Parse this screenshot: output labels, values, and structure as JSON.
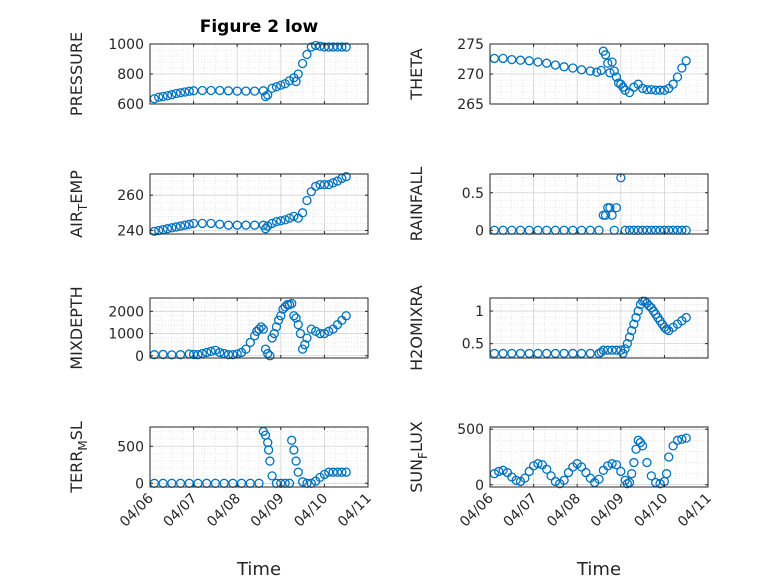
{
  "figure": {
    "marker_color": "#0072BD",
    "axis_color": "#262626",
    "grid_color": "#dfdfdf",
    "x_tick_labels": [
      "04/06",
      "04/07",
      "04/08",
      "04/09",
      "04/10",
      "04/11"
    ],
    "xlabel": "Time"
  },
  "chart_data": [
    {
      "type": "scatter",
      "title": "Figure 2 low",
      "ylabel": "PRESSURE",
      "ylim": [
        600,
        1000
      ],
      "yticks": [
        600,
        800,
        1000
      ],
      "xlim": [
        0,
        5
      ],
      "grid": true,
      "x": [
        0.1,
        0.2,
        0.3,
        0.4,
        0.5,
        0.6,
        0.7,
        0.8,
        0.9,
        1.0,
        1.2,
        1.4,
        1.6,
        1.8,
        2.0,
        2.2,
        2.4,
        2.6,
        2.65,
        2.7,
        2.8,
        2.9,
        3.0,
        3.1,
        3.2,
        3.3,
        3.35,
        3.4,
        3.5,
        3.6,
        3.7,
        3.8,
        3.9,
        4.0,
        4.1,
        4.2,
        4.3,
        4.4,
        4.5
      ],
      "y": [
        635,
        645,
        650,
        655,
        662,
        670,
        675,
        680,
        685,
        688,
        690,
        690,
        690,
        688,
        686,
        686,
        686,
        688,
        650,
        660,
        705,
        715,
        725,
        735,
        755,
        775,
        750,
        800,
        870,
        930,
        980,
        990,
        985,
        980,
        980,
        980,
        980,
        980,
        980
      ]
    },
    {
      "type": "scatter",
      "ylabel": "THETA",
      "ylim": [
        265,
        275
      ],
      "yticks": [
        265,
        270,
        275
      ],
      "xlim": [
        0,
        5
      ],
      "grid": true,
      "x": [
        0.1,
        0.3,
        0.5,
        0.7,
        0.9,
        1.1,
        1.3,
        1.5,
        1.7,
        1.9,
        2.1,
        2.3,
        2.45,
        2.55,
        2.6,
        2.65,
        2.7,
        2.75,
        2.8,
        2.85,
        2.9,
        2.95,
        3.0,
        3.05,
        3.1,
        3.2,
        3.3,
        3.4,
        3.5,
        3.6,
        3.7,
        3.8,
        3.9,
        4.0,
        4.1,
        4.2,
        4.3,
        4.4,
        4.5
      ],
      "y": [
        272.6,
        272.6,
        272.4,
        272.3,
        272.2,
        272.0,
        271.8,
        271.5,
        271.2,
        271.0,
        270.7,
        270.5,
        270.3,
        270.6,
        273.8,
        273.2,
        271.8,
        270.2,
        272.0,
        270.5,
        269.5,
        268.5,
        268.3,
        267.8,
        267.3,
        266.9,
        267.8,
        268.3,
        267.6,
        267.4,
        267.4,
        267.3,
        267.3,
        267.3,
        267.6,
        268.3,
        269.5,
        271.0,
        272.2
      ]
    },
    {
      "type": "scatter",
      "ylabel": "AIR_TEMP",
      "ylim": [
        238,
        272
      ],
      "yticks": [
        240,
        260
      ],
      "xlim": [
        0,
        5
      ],
      "grid": true,
      "x": [
        0.1,
        0.2,
        0.3,
        0.4,
        0.5,
        0.6,
        0.7,
        0.8,
        0.9,
        1.0,
        1.2,
        1.4,
        1.6,
        1.8,
        2.0,
        2.2,
        2.4,
        2.6,
        2.65,
        2.7,
        2.8,
        2.9,
        3.0,
        3.1,
        3.2,
        3.3,
        3.4,
        3.5,
        3.6,
        3.7,
        3.8,
        3.9,
        4.0,
        4.1,
        4.2,
        4.3,
        4.4,
        4.5
      ],
      "y": [
        239.5,
        240.0,
        240.5,
        241.0,
        241.5,
        242.0,
        242.5,
        243.0,
        243.5,
        244.0,
        244.0,
        244.0,
        243.5,
        243.0,
        243.0,
        243.0,
        243.0,
        243.0,
        241.0,
        242.5,
        244.0,
        245.0,
        245.5,
        246.0,
        247.0,
        248.0,
        247.0,
        250.0,
        257.0,
        262.0,
        265.0,
        266.0,
        266.0,
        266.0,
        267.0,
        268.0,
        269.5,
        270.5
      ]
    },
    {
      "type": "scatter",
      "ylabel": "RAINFALL",
      "ylim": [
        -0.05,
        0.75
      ],
      "yticks": [
        0,
        0.5
      ],
      "xlim": [
        0,
        5
      ],
      "grid": true,
      "x": [
        0.1,
        0.3,
        0.5,
        0.7,
        0.9,
        1.1,
        1.3,
        1.5,
        1.7,
        1.9,
        2.1,
        2.3,
        2.5,
        2.6,
        2.65,
        2.7,
        2.75,
        2.8,
        2.85,
        2.9,
        3.0,
        3.1,
        3.2,
        3.3,
        3.4,
        3.5,
        3.6,
        3.7,
        3.8,
        3.9,
        4.0,
        4.1,
        4.2,
        4.3,
        4.4,
        4.5
      ],
      "y": [
        0,
        0,
        0,
        0,
        0,
        0,
        0,
        0,
        0,
        0,
        0,
        0,
        0,
        0.2,
        0.2,
        0.3,
        0.3,
        0.2,
        0,
        0.3,
        0.7,
        0,
        0,
        0,
        0,
        0,
        0,
        0,
        0,
        0,
        0,
        0,
        0,
        0,
        0,
        0
      ]
    },
    {
      "type": "scatter",
      "ylabel": "MIXDEPTH",
      "ylim": [
        -100,
        2600
      ],
      "yticks": [
        0,
        1000,
        2000
      ],
      "xlim": [
        0,
        5
      ],
      "grid": true,
      "x": [
        0.1,
        0.3,
        0.5,
        0.7,
        0.9,
        1.0,
        1.1,
        1.2,
        1.3,
        1.4,
        1.5,
        1.6,
        1.7,
        1.8,
        1.9,
        2.0,
        2.1,
        2.2,
        2.3,
        2.4,
        2.45,
        2.5,
        2.55,
        2.6,
        2.65,
        2.7,
        2.75,
        2.8,
        2.85,
        2.9,
        2.95,
        3.0,
        3.05,
        3.1,
        3.15,
        3.2,
        3.25,
        3.3,
        3.35,
        3.4,
        3.45,
        3.5,
        3.55,
        3.6,
        3.7,
        3.8,
        3.9,
        4.0,
        4.1,
        4.2,
        4.3,
        4.4,
        4.5
      ],
      "y": [
        50,
        60,
        40,
        50,
        80,
        60,
        50,
        100,
        150,
        200,
        250,
        150,
        100,
        50,
        50,
        80,
        150,
        300,
        600,
        900,
        1100,
        1200,
        1300,
        1200,
        300,
        100,
        0,
        800,
        1000,
        1300,
        1600,
        1800,
        2100,
        2200,
        2300,
        2300,
        2350,
        1800,
        1700,
        1400,
        1000,
        300,
        500,
        800,
        1200,
        1100,
        1000,
        1000,
        1100,
        1200,
        1400,
        1600,
        1800
      ]
    },
    {
      "type": "scatter",
      "ylabel": "H2OMIXRA",
      "ylim": [
        0.28,
        1.2
      ],
      "yticks": [
        0.5,
        1
      ],
      "xlim": [
        0,
        5
      ],
      "grid": true,
      "x": [
        0.1,
        0.3,
        0.5,
        0.7,
        0.9,
        1.1,
        1.3,
        1.5,
        1.7,
        1.9,
        2.1,
        2.3,
        2.5,
        2.55,
        2.6,
        2.7,
        2.8,
        2.9,
        3.0,
        3.05,
        3.1,
        3.15,
        3.2,
        3.25,
        3.3,
        3.35,
        3.4,
        3.45,
        3.5,
        3.55,
        3.6,
        3.65,
        3.7,
        3.75,
        3.8,
        3.85,
        3.9,
        3.95,
        4.0,
        4.05,
        4.1,
        4.2,
        4.3,
        4.4,
        4.5
      ],
      "y": [
        0.35,
        0.35,
        0.35,
        0.35,
        0.35,
        0.35,
        0.35,
        0.35,
        0.35,
        0.35,
        0.35,
        0.35,
        0.35,
        0.37,
        0.4,
        0.4,
        0.4,
        0.4,
        0.4,
        0.35,
        0.42,
        0.5,
        0.6,
        0.7,
        0.8,
        0.9,
        1.0,
        1.1,
        1.15,
        1.15,
        1.12,
        1.08,
        1.05,
        1.0,
        0.95,
        0.9,
        0.85,
        0.8,
        0.75,
        0.72,
        0.7,
        0.75,
        0.8,
        0.85,
        0.9
      ]
    },
    {
      "type": "scatter",
      "ylabel": "TERR_MSL",
      "ylim": [
        -50,
        760
      ],
      "yticks": [
        0,
        500
      ],
      "xlim": [
        0,
        5
      ],
      "grid": true,
      "x": [
        0.1,
        0.3,
        0.5,
        0.7,
        0.9,
        1.1,
        1.3,
        1.5,
        1.7,
        1.9,
        2.1,
        2.3,
        2.5,
        2.6,
        2.65,
        2.7,
        2.72,
        2.75,
        2.8,
        2.9,
        3.0,
        3.1,
        3.2,
        3.25,
        3.3,
        3.35,
        3.4,
        3.5,
        3.6,
        3.7,
        3.8,
        3.9,
        4.0,
        4.1,
        4.2,
        4.3,
        4.4,
        4.5
      ],
      "y": [
        0,
        0,
        0,
        0,
        0,
        0,
        0,
        0,
        0,
        0,
        0,
        0,
        0,
        700,
        650,
        550,
        450,
        300,
        100,
        0,
        0,
        0,
        0,
        580,
        450,
        300,
        150,
        20,
        0,
        0,
        30,
        80,
        120,
        150,
        150,
        150,
        150,
        150
      ]
    },
    {
      "type": "scatter",
      "ylabel": "SUN_FLUX",
      "ylim": [
        -20,
        520
      ],
      "yticks": [
        0,
        500
      ],
      "xlim": [
        0,
        5
      ],
      "grid": true,
      "x": [
        0.1,
        0.2,
        0.3,
        0.4,
        0.5,
        0.6,
        0.7,
        0.8,
        0.9,
        1.0,
        1.1,
        1.2,
        1.3,
        1.4,
        1.5,
        1.6,
        1.7,
        1.8,
        1.9,
        2.0,
        2.1,
        2.2,
        2.3,
        2.4,
        2.5,
        2.6,
        2.7,
        2.8,
        2.9,
        3.0,
        3.1,
        3.15,
        3.2,
        3.25,
        3.3,
        3.35,
        3.4,
        3.45,
        3.5,
        3.6,
        3.7,
        3.8,
        3.9,
        4.0,
        4.05,
        4.1,
        4.2,
        4.3,
        4.4,
        4.5
      ],
      "y": [
        100,
        120,
        130,
        110,
        70,
        40,
        30,
        60,
        120,
        170,
        190,
        180,
        140,
        80,
        30,
        10,
        40,
        110,
        160,
        190,
        160,
        110,
        60,
        20,
        50,
        130,
        170,
        190,
        180,
        120,
        40,
        10,
        20,
        100,
        200,
        320,
        400,
        380,
        350,
        200,
        80,
        20,
        10,
        30,
        100,
        250,
        350,
        400,
        410,
        420
      ]
    }
  ]
}
